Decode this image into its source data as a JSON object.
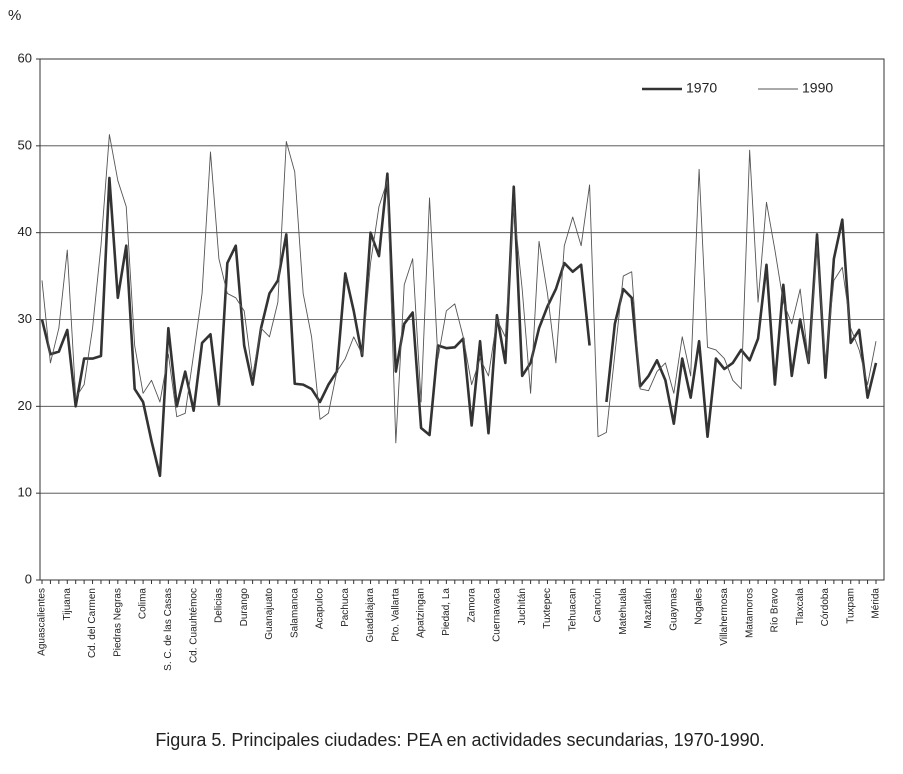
{
  "chart_data": {
    "type": "line",
    "title": "Figura 5. Principales ciudades: PEA en actividades secundarias, 1970-1990.",
    "y_label": "%",
    "categories": [
      "Aguascalientes",
      null,
      null,
      "Tijuana",
      null,
      null,
      "Cd. del Carmen",
      null,
      null,
      "Piedras Negras",
      null,
      null,
      "Colima",
      null,
      null,
      "S. C. de las Casas",
      null,
      null,
      "Cd. Cuauhtémoc",
      null,
      null,
      "Delicias",
      null,
      null,
      "Durango",
      null,
      null,
      "Guanajuato",
      null,
      null,
      "Salamanca",
      null,
      null,
      "Acapulco",
      null,
      null,
      "Pachuca",
      null,
      null,
      "Guadalajara",
      null,
      null,
      "Pto. Vallarta",
      null,
      null,
      "Apatzingan",
      null,
      null,
      "Piedad, La",
      null,
      null,
      "Zamora",
      null,
      null,
      "Cuernavaca",
      null,
      null,
      "Juchitán",
      null,
      null,
      "Tuxtepec",
      null,
      null,
      "Tehuacan",
      null,
      null,
      "Cancún",
      null,
      null,
      "Matehuala",
      null,
      null,
      "Mazatlán",
      null,
      null,
      "Guaymas",
      null,
      null,
      "Nogales",
      null,
      null,
      "Villahermosa",
      null,
      null,
      "Matamoros",
      null,
      null,
      "Río Bravo",
      null,
      null,
      "Tlaxcala",
      null,
      null,
      "Córdoba",
      null,
      null,
      "Tuxpam",
      null,
      null,
      "Mérida"
    ],
    "series": [
      {
        "name": "1970",
        "color": "#333333",
        "width": 2.6,
        "values": [
          30,
          26,
          26.3,
          28.8,
          20,
          25.5,
          25.5,
          25.8,
          46.3,
          32.5,
          38.5,
          22,
          20.5,
          16,
          12,
          29,
          20,
          24,
          19.5,
          27.3,
          28.3,
          20.2,
          36.5,
          38.5,
          27,
          22.5,
          29,
          33,
          34.5,
          39.8,
          22.6,
          22.5,
          22,
          20.5,
          22.5,
          24,
          35.3,
          31,
          25.8,
          40,
          37.3,
          46.8,
          24,
          29.5,
          30.8,
          17.5,
          16.7,
          27,
          26.7,
          26.8,
          27.8,
          17.8,
          27.5,
          16.9,
          30.5,
          25,
          45.3,
          23.5,
          25,
          29,
          31.5,
          33.5,
          36.5,
          35.5,
          36.3,
          27,
          null,
          20.5,
          29.5,
          33.5,
          32.5,
          22.3,
          23.5,
          25.3,
          23,
          18,
          25.5,
          21,
          27.5,
          16.5,
          25.5,
          24.3,
          25,
          26.5,
          25.3,
          27.8,
          36.3,
          22.5,
          34,
          23.5,
          30,
          25,
          39.8,
          23.3,
          37,
          41.5,
          27.3,
          28.8,
          21,
          25
        ]
      },
      {
        "name": "1990",
        "color": "#555555",
        "width": 0.9,
        "values": [
          34.5,
          25,
          29,
          38,
          21,
          22.5,
          29,
          38.5,
          51.3,
          46,
          43,
          27,
          21.5,
          23,
          20.5,
          26,
          18.8,
          19.2,
          26,
          33,
          49.3,
          37,
          33,
          32.5,
          31,
          23.5,
          29,
          28,
          32,
          50.5,
          47,
          33,
          28,
          18.5,
          19.2,
          24,
          25.5,
          28,
          26,
          36.5,
          43,
          46,
          15.8,
          34,
          37,
          20.5,
          44,
          25.5,
          31,
          31.8,
          28,
          22.5,
          25.5,
          23.5,
          30,
          28,
          43,
          33.5,
          21.5,
          39,
          33,
          25,
          38.5,
          41.8,
          38.5,
          45.5,
          16.5,
          17,
          26,
          35,
          35.5,
          22,
          21.8,
          24,
          25,
          21.5,
          28,
          23.5,
          47.3,
          26.8,
          26.5,
          25.5,
          23,
          22,
          49.5,
          32,
          43.5,
          38,
          32,
          29.5,
          33.5,
          25,
          38.5,
          25,
          34.5,
          36,
          29,
          26.5,
          22.5,
          27.5
        ]
      }
    ],
    "ylim": [
      0,
      60
    ],
    "yticks": [
      0,
      10,
      20,
      30,
      40,
      50,
      60
    ],
    "grid": true,
    "legend": "upper right"
  }
}
